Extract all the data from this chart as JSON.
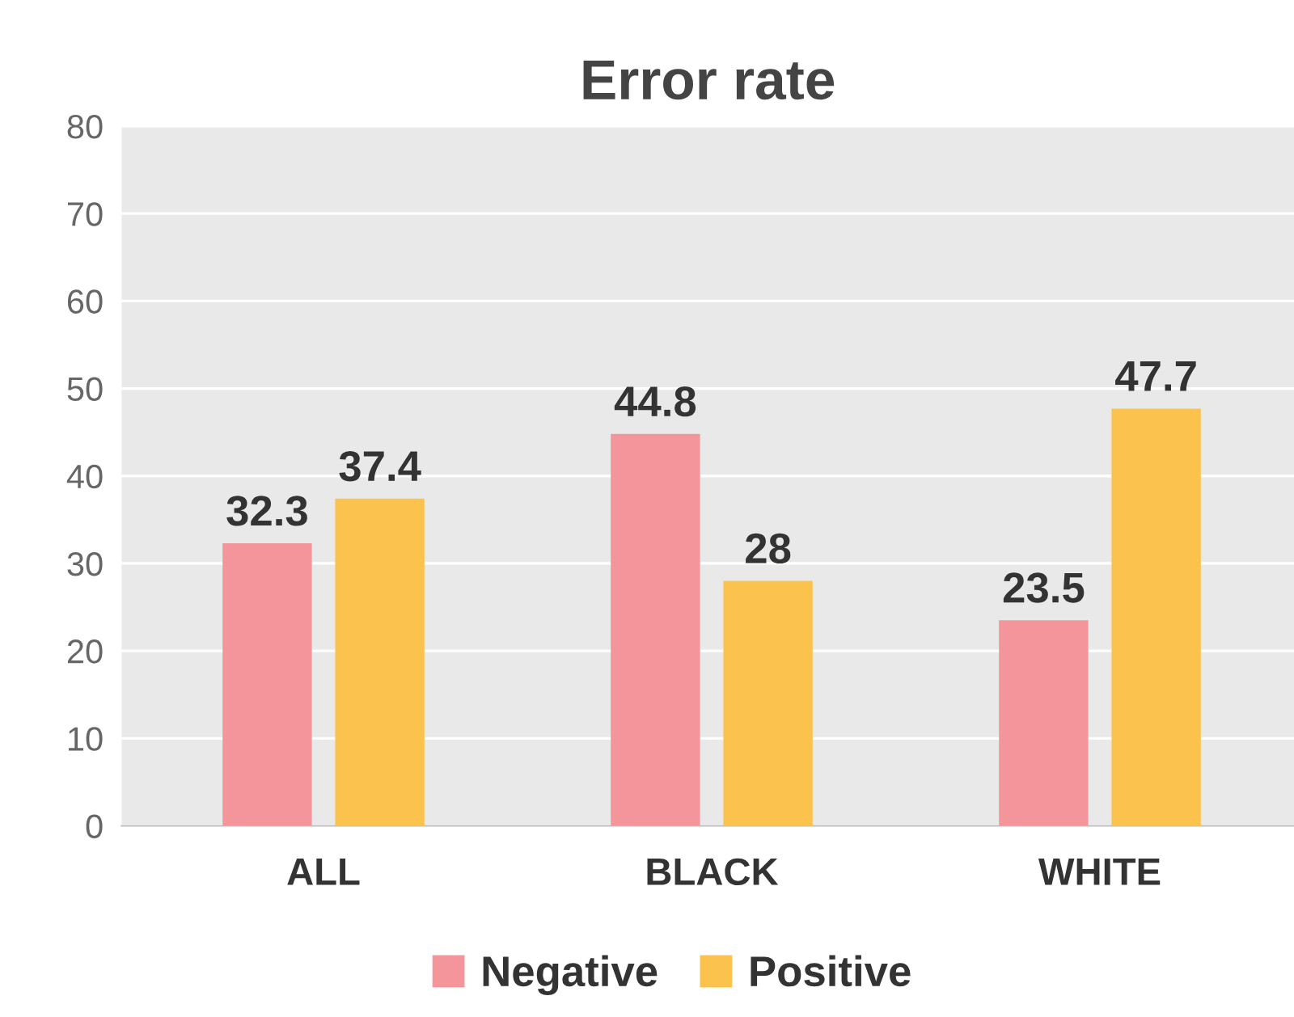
{
  "chart_data": {
    "type": "bar",
    "title": "Error rate",
    "categories": [
      "ALL",
      "BLACK",
      "WHITE"
    ],
    "series": [
      {
        "name": "Negative",
        "color": "#f4959b",
        "values": [
          32.3,
          44.8,
          23.5
        ]
      },
      {
        "name": "Positive",
        "color": "#fbc34e",
        "values": [
          37.4,
          28,
          47.7
        ]
      }
    ],
    "ylim": [
      0,
      80
    ],
    "yticks": [
      0,
      10,
      20,
      30,
      40,
      50,
      60,
      70,
      80
    ],
    "grid": "y",
    "legend": "bottom",
    "data_labels": true
  }
}
